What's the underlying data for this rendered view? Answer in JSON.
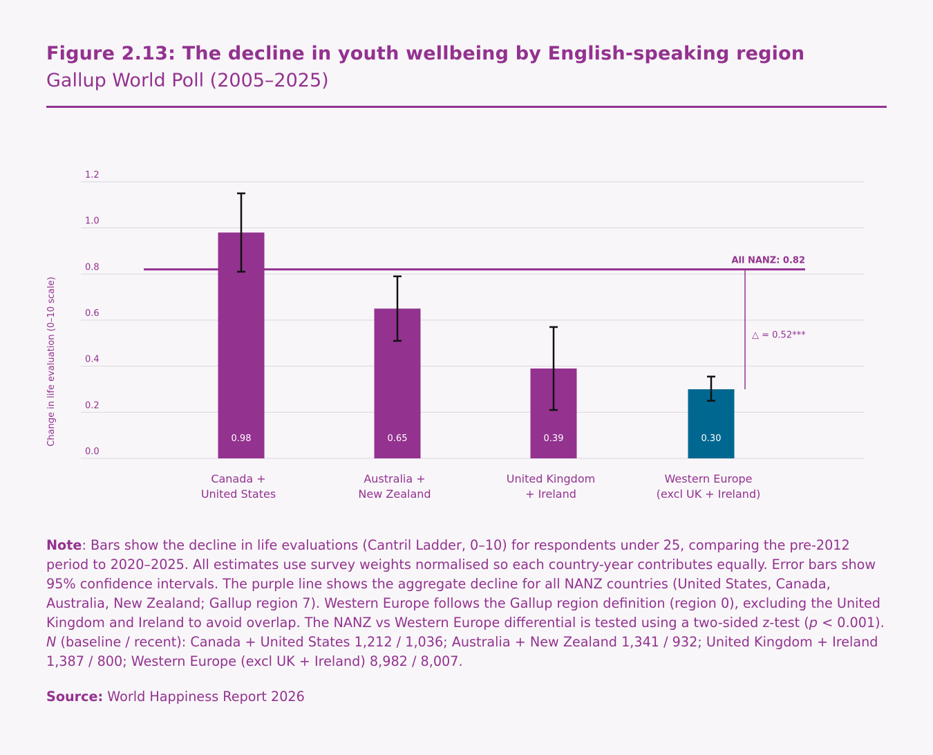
{
  "header": {
    "title": "Figure 2.13: The decline in youth wellbeing by English-speaking region",
    "subtitle": "Gallup World Poll (2005–2025)"
  },
  "chart_data": {
    "type": "bar",
    "ylabel": "Change in life evaluation (0–10 scale)",
    "xlabel": "",
    "ylim": [
      0,
      1.2
    ],
    "yticks": [
      "0.0",
      "0.2",
      "0.4",
      "0.6",
      "0.8",
      "1.0",
      "1.2"
    ],
    "grid": true,
    "categories": [
      [
        "Canada +",
        "United States"
      ],
      [
        "Australia +",
        "New Zealand"
      ],
      [
        "United Kingdom",
        "+ Ireland"
      ],
      [
        "Western Europe",
        "(excl UK + Ireland)"
      ]
    ],
    "values": [
      0.98,
      0.65,
      0.39,
      0.3
    ],
    "value_labels": [
      "0.98",
      "0.65",
      "0.39",
      "0.30"
    ],
    "ci_low": [
      0.81,
      0.51,
      0.21,
      0.25
    ],
    "ci_high": [
      1.15,
      0.79,
      0.57,
      0.355
    ],
    "bar_colors": [
      "#93328f",
      "#93328f",
      "#93328f",
      "#006890"
    ],
    "reference_line": {
      "value": 0.82,
      "label": "All NANZ: 0.82",
      "color": "#93328f"
    },
    "difference_annotation": {
      "label": "△ = 0.52***",
      "from": 0.82,
      "to": 0.3
    }
  },
  "note": {
    "label": "Note",
    "text_1": ": Bars show the decline in life evaluations (Cantril Ladder, 0–10) for respondents under 25, comparing the pre-2012 period to 2020–2025. All estimates use survey weights normalised so each country-year contributes equally. Error bars show 95% confidence intervals. The purple line shows the aggregate decline for all NANZ countries (United States, Canada, Australia, New Zealand; Gallup region 7). Western Europe follows the Gallup region definition (region 0), excluding the United Kingdom and Ireland to avoid overlap. The NANZ vs Western Europe differential is tested using a two-sided z-test (",
    "p_symbol": "p",
    "text_2": " < 0.001). ",
    "n_symbol": "N",
    "text_3": " (baseline / recent): Canada + United States 1,212 / 1,036; Australia + New Zealand 1,341 / 932; United Kingdom + Ireland 1,387 / 800; Western Europe (excl UK + Ireland) 8,982 / 8,007."
  },
  "source": {
    "label": "Source:",
    "text": " World Happiness Report 2026"
  },
  "colors": {
    "accent": "#93328f",
    "western_europe": "#006890",
    "background": "#f8f6f9"
  }
}
